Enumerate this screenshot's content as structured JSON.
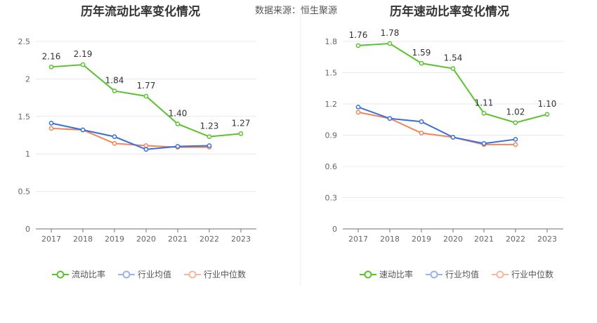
{
  "header": {
    "source_text": "数据来源：恒生聚源"
  },
  "chart_data": [
    {
      "type": "line",
      "title": "历年流动比率变化情况",
      "categories": [
        "2017",
        "2018",
        "2019",
        "2020",
        "2021",
        "2022",
        "2023"
      ],
      "ylim": [
        0,
        2.5
      ],
      "yticks": [
        0,
        0.5,
        1,
        1.5,
        2,
        2.5
      ],
      "ytick_labels": [
        "0",
        "0.5",
        "1",
        "1.5",
        "2",
        "2.5"
      ],
      "grid": true,
      "legend_position": "bottom",
      "series": [
        {
          "name": "流动比率",
          "color": "#5bc22f",
          "values": [
            2.16,
            2.19,
            1.84,
            1.77,
            1.4,
            1.23,
            1.27
          ],
          "labels": [
            "2.16",
            "2.19",
            "1.84",
            "1.77",
            "1.40",
            "1.23",
            "1.27"
          ],
          "show_labels": true
        },
        {
          "name": "行业均值",
          "color": "#3b6fd8",
          "values": [
            1.41,
            1.32,
            1.23,
            1.06,
            1.1,
            1.11,
            null
          ],
          "show_labels": false
        },
        {
          "name": "行业中位数",
          "color": "#f0855a",
          "values": [
            1.34,
            1.32,
            1.14,
            1.11,
            1.09,
            1.09,
            null
          ],
          "show_labels": false
        }
      ]
    },
    {
      "type": "line",
      "title": "历年速动比率变化情况",
      "categories": [
        "2017",
        "2018",
        "2019",
        "2020",
        "2021",
        "2022",
        "2023"
      ],
      "ylim": [
        0,
        1.8
      ],
      "yticks": [
        0,
        0.3,
        0.6,
        0.9,
        1.2,
        1.5,
        1.8
      ],
      "ytick_labels": [
        "0",
        "0.3",
        "0.6",
        "0.9",
        "1.2",
        "1.5",
        "1.8"
      ],
      "grid": true,
      "legend_position": "bottom",
      "series": [
        {
          "name": "速动比率",
          "color": "#5bc22f",
          "values": [
            1.76,
            1.78,
            1.59,
            1.54,
            1.11,
            1.02,
            1.1
          ],
          "labels": [
            "1.76",
            "1.78",
            "1.59",
            "1.54",
            "1.11",
            "1.02",
            "1.10"
          ],
          "show_labels": true
        },
        {
          "name": "行业均值",
          "color": "#3b6fd8",
          "values": [
            1.17,
            1.06,
            1.03,
            0.88,
            0.82,
            0.86,
            null
          ],
          "show_labels": false
        },
        {
          "name": "行业中位数",
          "color": "#f0855a",
          "values": [
            1.12,
            1.06,
            0.92,
            0.88,
            0.81,
            0.81,
            null
          ],
          "show_labels": false
        }
      ]
    }
  ]
}
